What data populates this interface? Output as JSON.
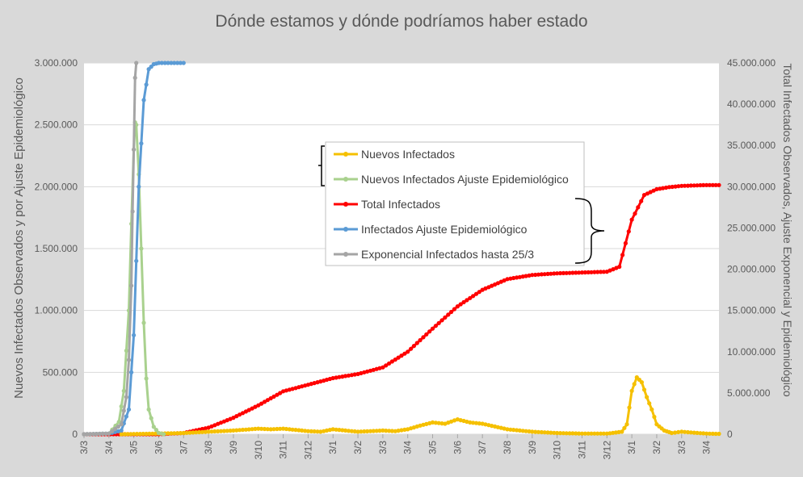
{
  "chart_data": {
    "type": "line",
    "title": "Dónde estamos y dónde podríamos haber estado",
    "ylabel_left": "Nuevos Infectados Observados y por Ajuste Epidemiológico",
    "ylabel_right": "Total Infectados Observados, Ajuste Exponencial y Epidemiológico",
    "ylim_left": [
      0,
      3000000
    ],
    "ylim_right": [
      0,
      45000000
    ],
    "yticks_left": [
      {
        "value": 0,
        "label": "0"
      },
      {
        "value": 500000,
        "label": "500.000"
      },
      {
        "value": 1000000,
        "label": "1.000.000"
      },
      {
        "value": 1500000,
        "label": "1.500.000"
      },
      {
        "value": 2000000,
        "label": "2.000.000"
      },
      {
        "value": 2500000,
        "label": "2.500.000"
      },
      {
        "value": 3000000,
        "label": "3.000.000"
      }
    ],
    "yticks_right": [
      {
        "value": 0,
        "label": "0"
      },
      {
        "value": 5000000,
        "label": "5.000.000"
      },
      {
        "value": 10000000,
        "label": "10.000.000"
      },
      {
        "value": 15000000,
        "label": "15.000.000"
      },
      {
        "value": 20000000,
        "label": "20.000.000"
      },
      {
        "value": 25000000,
        "label": "25.000.000"
      },
      {
        "value": 30000000,
        "label": "30.000.000"
      },
      {
        "value": 35000000,
        "label": "35.000.000"
      },
      {
        "value": 40000000,
        "label": "40.000.000"
      },
      {
        "value": 45000000,
        "label": "45.000.000"
      }
    ],
    "x_domain": [
      0,
      25.5
    ],
    "xticks": [
      {
        "value": 0,
        "label": "3/3"
      },
      {
        "value": 1,
        "label": "3/4"
      },
      {
        "value": 2,
        "label": "3/5"
      },
      {
        "value": 3,
        "label": "3/6"
      },
      {
        "value": 4,
        "label": "3/7"
      },
      {
        "value": 5,
        "label": "3/8"
      },
      {
        "value": 6,
        "label": "3/9"
      },
      {
        "value": 7,
        "label": "3/10"
      },
      {
        "value": 8,
        "label": "3/11"
      },
      {
        "value": 9,
        "label": "3/12"
      },
      {
        "value": 10,
        "label": "3/1"
      },
      {
        "value": 11,
        "label": "3/2"
      },
      {
        "value": 12,
        "label": "3/3"
      },
      {
        "value": 13,
        "label": "3/4"
      },
      {
        "value": 14,
        "label": "3/5"
      },
      {
        "value": 15,
        "label": "3/6"
      },
      {
        "value": 16,
        "label": "3/7"
      },
      {
        "value": 17,
        "label": "3/8"
      },
      {
        "value": 18,
        "label": "3/9"
      },
      {
        "value": 19,
        "label": "3/10"
      },
      {
        "value": 20,
        "label": "3/11"
      },
      {
        "value": 21,
        "label": "3/12"
      },
      {
        "value": 22,
        "label": "3/1"
      },
      {
        "value": 23,
        "label": "3/2"
      },
      {
        "value": 24,
        "label": "3/3"
      },
      {
        "value": 25,
        "label": "3/4"
      }
    ],
    "series": [
      {
        "name": "Nuevos Infectados",
        "axis": "left",
        "color": "#f5c000",
        "x": [
          1.5,
          2,
          3,
          4,
          5,
          6,
          7,
          7.5,
          8,
          9,
          9.5,
          10,
          10.5,
          11,
          12,
          12.5,
          13,
          13.5,
          14,
          14.5,
          15,
          15.5,
          16,
          17,
          18,
          19,
          20,
          21,
          21.6,
          21.8,
          22,
          22.2,
          22.4,
          22.6,
          22.8,
          23,
          23.3,
          23.6,
          24,
          25,
          25.5
        ],
        "values": [
          0,
          2000,
          5000,
          10000,
          20000,
          30000,
          45000,
          40000,
          45000,
          25000,
          20000,
          40000,
          30000,
          20000,
          30000,
          25000,
          40000,
          70000,
          95000,
          85000,
          120000,
          95000,
          85000,
          40000,
          20000,
          10000,
          5000,
          5000,
          20000,
          80000,
          350000,
          460000,
          420000,
          300000,
          200000,
          80000,
          30000,
          10000,
          20000,
          5000,
          3000
        ]
      },
      {
        "name": "Nuevos Infectados Ajuste Epidemiológico",
        "axis": "left",
        "color": "#a9d18e",
        "x": [
          0,
          1,
          1.4,
          1.6,
          1.8,
          1.9,
          2.0,
          2.05,
          2.1,
          2.2,
          2.3,
          2.4,
          2.5,
          2.6,
          2.8,
          3.0,
          3.2
        ],
        "values": [
          0,
          5000,
          100000,
          350000,
          1000000,
          1700000,
          2300000,
          2520000,
          2500000,
          2100000,
          1500000,
          900000,
          450000,
          200000,
          60000,
          10000,
          0
        ]
      },
      {
        "name": "Total Infectados",
        "axis": "right",
        "color": "#ff0000",
        "x": [
          0,
          2,
          3,
          4,
          5,
          6,
          7,
          8,
          9,
          10,
          11,
          12,
          13,
          14,
          15,
          16,
          17,
          18,
          19,
          20,
          21,
          21.5,
          22,
          22.5,
          23,
          23.5,
          24,
          25,
          25.5
        ],
        "values": [
          0,
          0,
          0,
          150000,
          800000,
          2000000,
          3500000,
          5200000,
          6000000,
          6800000,
          7300000,
          8100000,
          10000000,
          12800000,
          15500000,
          17500000,
          18800000,
          19300000,
          19500000,
          19600000,
          19700000,
          20300000,
          26000000,
          29000000,
          29700000,
          29950000,
          30100000,
          30200000,
          30200000
        ]
      },
      {
        "name": "Infectados Ajuste Epidemiológico",
        "axis": "left",
        "color": "#5b9bd5",
        "x": [
          0,
          1,
          1.5,
          1.8,
          2.0,
          2.1,
          2.2,
          2.4,
          2.6,
          2.8,
          3.0,
          3.5,
          4.0
        ],
        "values": [
          0,
          5000,
          30000,
          200000,
          800000,
          1400000,
          2000000,
          2700000,
          2950000,
          2990000,
          3000000,
          3000000,
          3000000
        ]
      },
      {
        "name": "Exponencial Infectados hasta 25/3",
        "axis": "left",
        "color": "#a5a5a5",
        "x": [
          0,
          1,
          1.5,
          1.7,
          1.8,
          1.9,
          1.95,
          2.0,
          2.05,
          2.1
        ],
        "values": [
          0,
          5000,
          80000,
          300000,
          600000,
          1200000,
          1800000,
          2300000,
          2880000,
          3000000
        ]
      }
    ]
  }
}
